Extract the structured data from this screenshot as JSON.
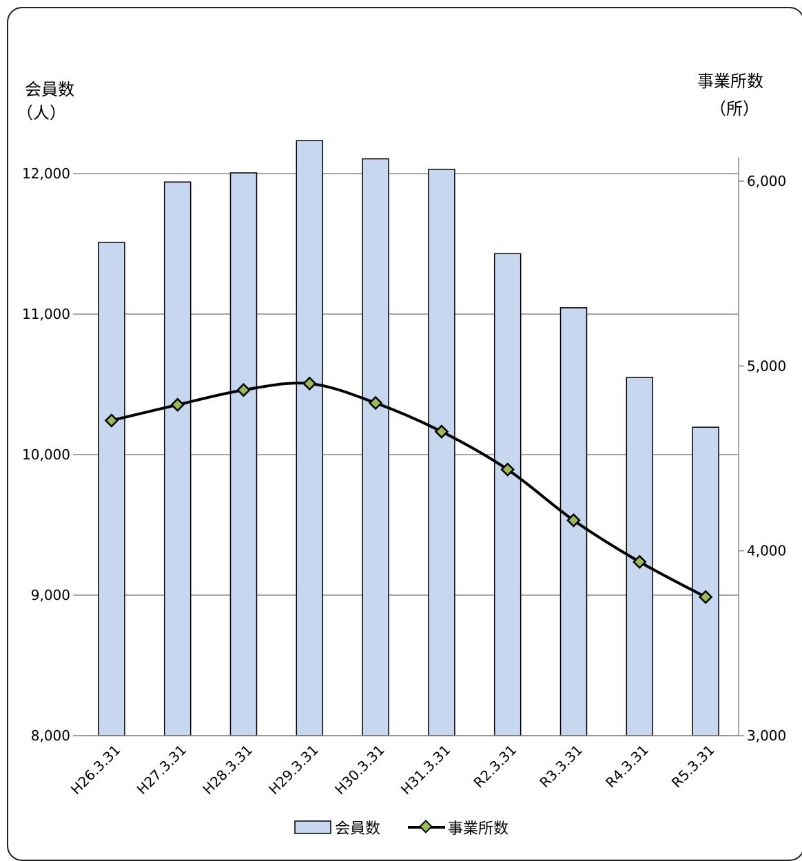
{
  "chart_data": {
    "type": "bar+line",
    "categories": [
      "H26.3.31",
      "H27.3.31",
      "H28.3.31",
      "H29.3.31",
      "H30.3.31",
      "H31.3.31",
      "R2.3.31",
      "R3.3.31",
      "R4.3.31",
      "R5.3.31"
    ],
    "series": [
      {
        "name": "会員数",
        "type": "bar",
        "axis": "left",
        "values": [
          11510,
          11940,
          12005,
          12235,
          12105,
          12030,
          11430,
          11045,
          10550,
          10195
        ],
        "color": "#c6d7ef"
      },
      {
        "name": "事業所数",
        "type": "line",
        "axis": "right",
        "values": [
          4705,
          4790,
          4870,
          4905,
          4800,
          4645,
          4440,
          4165,
          3940,
          3750
        ],
        "color": "#000000",
        "marker_color": "#9bbb59"
      }
    ],
    "yleft": {
      "label_line1": "会員数",
      "label_line2": "（人）",
      "lim": [
        8000,
        12000
      ],
      "ticks": [
        "8,000",
        "9,000",
        "10,000",
        "11,000",
        "12,000"
      ]
    },
    "yright": {
      "label_line1": "事業所数",
      "label_line2": "（所）",
      "lim": [
        3000,
        6000
      ],
      "ticks": [
        "3,000",
        "4,000",
        "5,000",
        "6,000"
      ]
    },
    "legend": {
      "position": "bottom-center",
      "bar_label": "会員数",
      "line_label": "事業所数"
    },
    "grid": true
  }
}
